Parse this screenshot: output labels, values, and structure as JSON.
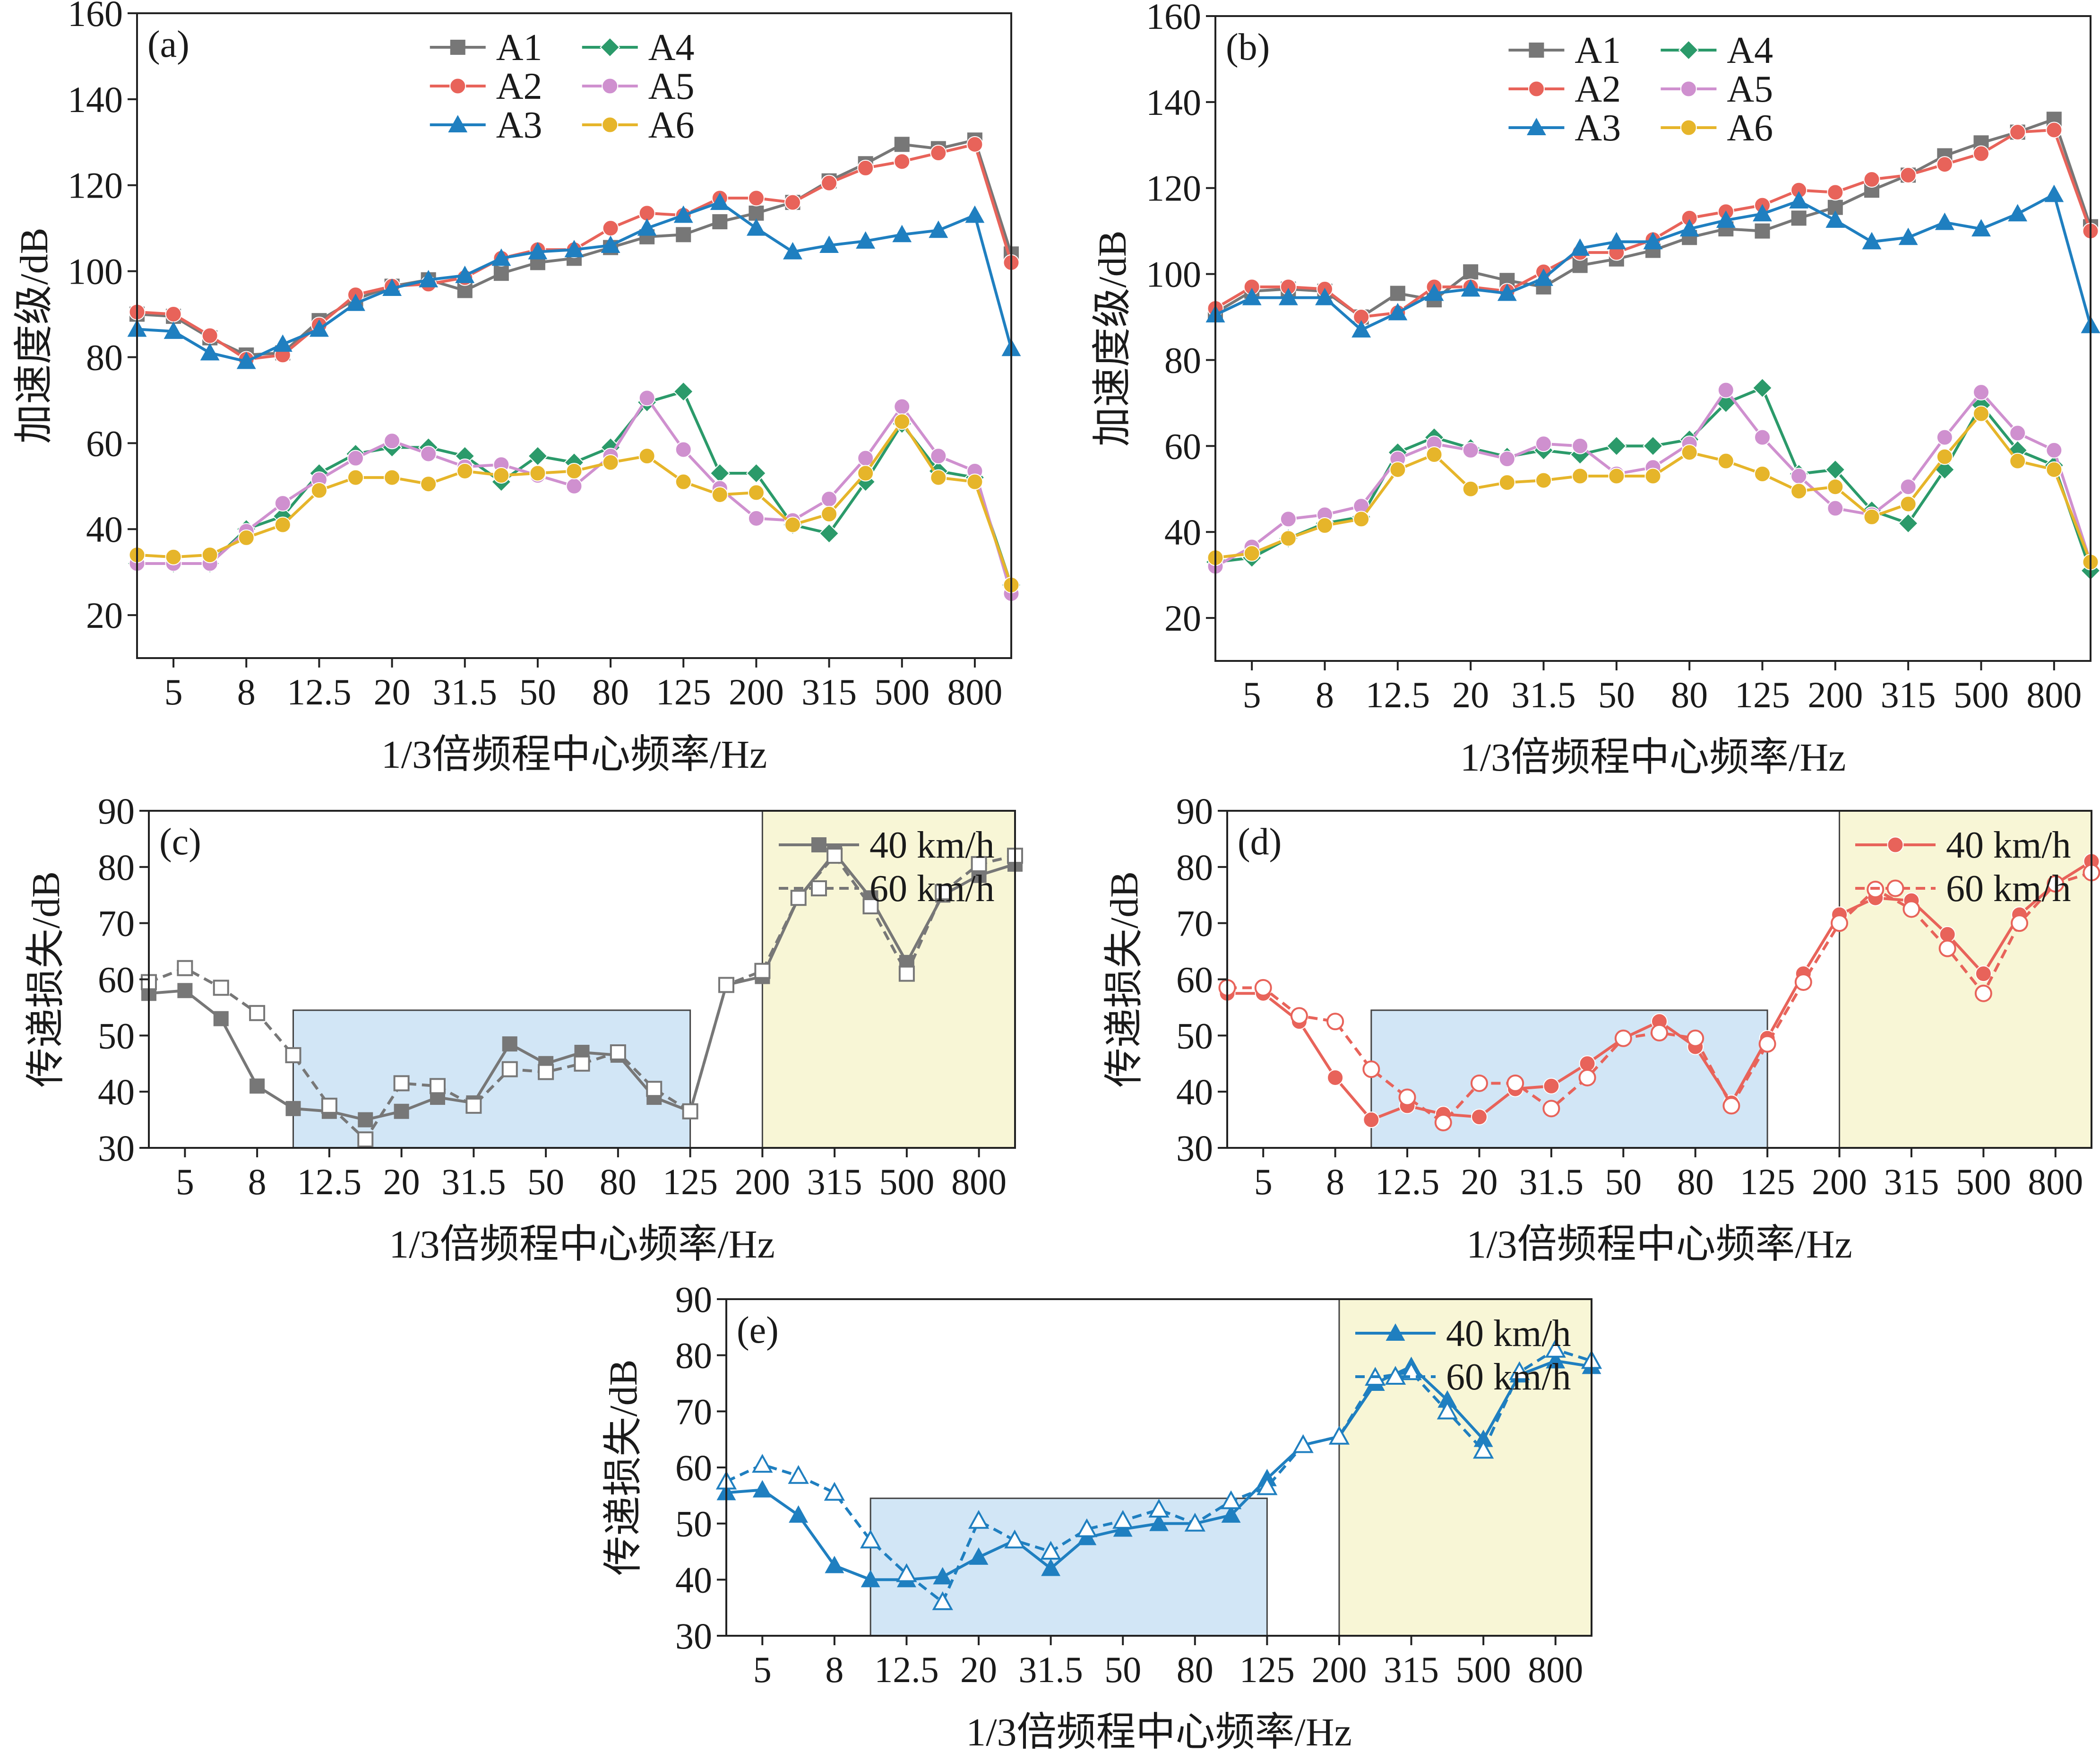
{
  "figure": {
    "xlabel": "1/3倍频程中心频率/Hz",
    "x_tick_labels": [
      "5",
      "8",
      "12.5",
      "20",
      "31.5",
      "50",
      "80",
      "125",
      "200",
      "315",
      "500",
      "800"
    ],
    "chart_data": [
      {
        "id": "a",
        "panel_label": "(a)",
        "type": "line",
        "title": "",
        "xlabel": "1/3倍频程中心频率/Hz",
        "ylabel": "加速度级/dB",
        "ylim": [
          10,
          160
        ],
        "yticks": [
          20,
          40,
          60,
          80,
          100,
          120,
          140,
          160
        ],
        "categories": [
          "4",
          "5",
          "6.3",
          "8",
          "10",
          "12.5",
          "16",
          "20",
          "25",
          "31.5",
          "40",
          "50",
          "63",
          "80",
          "100",
          "125",
          "160",
          "200",
          "250",
          "315",
          "400",
          "500",
          "630",
          "800",
          "1000"
        ],
        "series": [
          {
            "name": "A1",
            "color": "#777777",
            "marker": "square",
            "dashed": false,
            "values": [
              90,
              89.5,
              84.5,
              80.5,
              81,
              88.5,
              93.5,
              96.5,
              98,
              95.5,
              99.5,
              102,
              103,
              105.5,
              108,
              108.5,
              111.5,
              113.5,
              116,
              121,
              125,
              129.5,
              128.5,
              130.5,
              104
            ]
          },
          {
            "name": "A2",
            "color": "#e8635a",
            "marker": "circle",
            "dashed": false,
            "values": [
              90.5,
              90,
              85,
              79.5,
              80.5,
              87.5,
              94.5,
              96.5,
              97,
              98.5,
              103,
              105,
              105,
              110,
              113.5,
              113,
              117,
              117,
              116,
              120.5,
              124,
              125.5,
              127.5,
              129.5,
              102
            ]
          },
          {
            "name": "A3",
            "color": "#1f7fc0",
            "marker": "triangle",
            "dashed": false,
            "values": [
              86.5,
              86,
              81,
              79,
              83,
              86.5,
              92.5,
              96,
              98,
              99,
              103,
              104.5,
              105,
              106,
              110,
              113,
              116,
              110,
              104.5,
              106,
              107,
              108.5,
              109.5,
              113,
              82
            ]
          },
          {
            "name": "A4",
            "color": "#2b9a6a",
            "marker": "diamond",
            "dashed": false,
            "values": [
              32,
              32,
              32,
              40,
              43,
              53,
              57.5,
              59,
              59,
              57,
              51,
              57,
              55.5,
              59,
              69.5,
              72,
              53,
              53,
              41,
              39,
              51,
              64.5,
              53.5,
              52,
              27
            ]
          },
          {
            "name": "A5",
            "color": "#cf90cf",
            "marker": "circle",
            "dashed": false,
            "values": [
              32,
              32,
              32,
              39.5,
              46,
              51.5,
              56.5,
              60.5,
              57.5,
              54.5,
              55,
              52.5,
              50,
              57,
              70.5,
              58.5,
              49.5,
              42.5,
              42,
              47,
              56.5,
              68.5,
              57,
              53.5,
              25
            ]
          },
          {
            "name": "A6",
            "color": "#e6b52a",
            "marker": "circle",
            "dashed": false,
            "values": [
              34,
              33.5,
              34,
              38,
              41,
              49,
              52,
              52,
              50.5,
              53.5,
              52.5,
              53,
              53.5,
              55.5,
              57,
              51,
              48,
              48.5,
              41,
              43.5,
              53,
              65,
              52,
              51,
              27
            ]
          }
        ],
        "legend": {
          "position": "top-center",
          "columns": 2
        }
      },
      {
        "id": "b",
        "panel_label": "(b)",
        "type": "line",
        "title": "",
        "xlabel": "1/3倍频程中心频率/Hz",
        "ylabel": "加速度级/dB",
        "ylim": [
          10,
          160
        ],
        "yticks": [
          20,
          40,
          60,
          80,
          100,
          120,
          140,
          160
        ],
        "categories": [
          "4",
          "5",
          "6.3",
          "8",
          "10",
          "12.5",
          "16",
          "20",
          "25",
          "31.5",
          "40",
          "50",
          "63",
          "80",
          "100",
          "125",
          "160",
          "200",
          "250",
          "315",
          "400",
          "500",
          "630",
          "800",
          "1000"
        ],
        "series": [
          {
            "name": "A1",
            "color": "#777777",
            "marker": "square",
            "dashed": false,
            "values": [
              91,
              96,
              96.5,
              96,
              90,
              95.5,
              94,
              100.5,
              98.5,
              97,
              102,
              103.5,
              105.5,
              108.5,
              110.5,
              110,
              113,
              115.5,
              119.5,
              123,
              127.5,
              130.5,
              133,
              136,
              111
            ]
          },
          {
            "name": "A2",
            "color": "#e8635a",
            "marker": "circle",
            "dashed": false,
            "values": [
              92,
              97,
              97,
              96.5,
              90,
              91,
              97,
              97,
              96,
              100.5,
              105,
              105,
              108,
              113,
              114.5,
              116,
              119.5,
              119,
              122,
              123,
              125.5,
              128,
              133,
              133.5,
              110
            ]
          },
          {
            "name": "A3",
            "color": "#1f7fc0",
            "marker": "triangle",
            "dashed": false,
            "values": [
              90.5,
              94.5,
              94.5,
              94.5,
              87,
              91,
              95.5,
              96.5,
              95.5,
              99,
              106,
              107.5,
              107.5,
              110.5,
              112.5,
              114,
              117,
              112.5,
              107.5,
              108.5,
              112,
              110.5,
              114,
              118.5,
              88
            ]
          },
          {
            "name": "A4",
            "color": "#2b9a6a",
            "marker": "diamond",
            "dashed": false,
            "values": [
              33,
              34,
              38.5,
              42,
              43.5,
              58.5,
              62,
              59.5,
              57.5,
              59,
              58,
              60,
              60,
              61.5,
              70,
              73.5,
              53.5,
              54.5,
              45,
              42,
              54.5,
              69.5,
              59,
              55.5,
              31
            ]
          },
          {
            "name": "A5",
            "color": "#cf90cf",
            "marker": "circle",
            "dashed": false,
            "values": [
              32,
              36.5,
              43,
              44,
              46,
              57,
              60.5,
              59,
              57,
              60.5,
              60,
              53.5,
              55,
              60.5,
              73,
              62,
              53,
              45.5,
              44,
              50.5,
              62,
              72.5,
              63,
              59,
              33
            ]
          },
          {
            "name": "A6",
            "color": "#e6b52a",
            "marker": "circle",
            "dashed": false,
            "values": [
              34,
              35,
              38.5,
              41.5,
              43,
              54.5,
              58,
              50,
              51.5,
              52,
              53,
              53,
              53,
              58.5,
              56.5,
              53.5,
              49.5,
              50.5,
              43.5,
              46.5,
              57.5,
              67.5,
              56.5,
              54.5,
              33
            ]
          }
        ],
        "legend": {
          "position": "top-center",
          "columns": 2
        }
      },
      {
        "id": "c",
        "panel_label": "(c)",
        "type": "line",
        "title": "",
        "xlabel": "1/3倍频程中心频率/Hz",
        "ylabel": "传递损失/dB",
        "ylim": [
          30,
          90
        ],
        "yticks": [
          30,
          40,
          50,
          60,
          70,
          80,
          90
        ],
        "categories": [
          "4",
          "5",
          "6.3",
          "8",
          "10",
          "12.5",
          "16",
          "20",
          "25",
          "31.5",
          "40",
          "50",
          "63",
          "80",
          "100",
          "125",
          "160",
          "200",
          "250",
          "315",
          "400",
          "500",
          "630",
          "800",
          "1000"
        ],
        "series": [
          {
            "name": "40 km/h",
            "color": "#777777",
            "marker": "square",
            "dashed": false,
            "values": [
              57.5,
              58,
              53,
              41,
              37,
              36.5,
              35,
              36.5,
              39,
              38,
              48.5,
              45,
              47,
              46.5,
              39,
              36.5,
              59,
              60.5,
              74.5,
              82.5,
              74.5,
              63,
              75,
              78.5,
              80.5
            ]
          },
          {
            "name": "60 km/h",
            "color": "#777777",
            "marker": "square-open",
            "dashed": true,
            "values": [
              59.5,
              62,
              58.5,
              54,
              46.5,
              37.5,
              31.5,
              41.5,
              41,
              37.5,
              44,
              43.5,
              45,
              47,
              40.5,
              36.5,
              59,
              61.5,
              74.5,
              82,
              73,
              61,
              75.5,
              80.5,
              82
            ]
          }
        ],
        "highlight_bands": [
          {
            "from_index": 4,
            "to_index": 15,
            "y_max": 54.5,
            "color": "#d2e6f6"
          },
          {
            "from_index": 17,
            "to_index": 24,
            "y_max": 90,
            "color": "#f8f6d6"
          }
        ],
        "legend": {
          "position": "top-right",
          "columns": 1
        }
      },
      {
        "id": "d",
        "panel_label": "(d)",
        "type": "line",
        "title": "",
        "xlabel": "1/3倍频程中心频率/Hz",
        "ylabel": "传递损失/dB",
        "ylim": [
          30,
          90
        ],
        "yticks": [
          30,
          40,
          50,
          60,
          70,
          80,
          90
        ],
        "categories": [
          "4",
          "5",
          "6.3",
          "8",
          "10",
          "12.5",
          "16",
          "20",
          "25",
          "31.5",
          "40",
          "50",
          "63",
          "80",
          "100",
          "125",
          "160",
          "200",
          "250",
          "315",
          "400",
          "500",
          "630",
          "800",
          "1000"
        ],
        "series": [
          {
            "name": "40 km/h",
            "color": "#e8635a",
            "marker": "circle",
            "dashed": false,
            "values": [
              57.5,
              57.5,
              52.5,
              42.5,
              35,
              37.5,
              36,
              35.5,
              40.5,
              41,
              45,
              49.5,
              52.5,
              48,
              38,
              49.5,
              61,
              71.5,
              74.5,
              74,
              68,
              61,
              71.5,
              77,
              81
            ]
          },
          {
            "name": "60 km/h",
            "color": "#e8635a",
            "marker": "circle-open",
            "dashed": true,
            "values": [
              58.5,
              58.5,
              53.5,
              52.5,
              44,
              39,
              34.5,
              41.5,
              41.5,
              37,
              42.5,
              49.5,
              50.5,
              49.5,
              37.5,
              48.5,
              59.5,
              70,
              76,
              72.5,
              65.5,
              57.5,
              70,
              77,
              79
            ]
          }
        ],
        "highlight_bands": [
          {
            "from_index": 4,
            "to_index": 15,
            "y_max": 54.5,
            "color": "#d2e6f6"
          },
          {
            "from_index": 17,
            "to_index": 24,
            "y_max": 90,
            "color": "#f8f6d6"
          }
        ],
        "legend": {
          "position": "top-right",
          "columns": 1
        }
      },
      {
        "id": "e",
        "panel_label": "(e)",
        "type": "line",
        "title": "",
        "xlabel": "1/3倍频程中心频率/Hz",
        "ylabel": "传递损失/dB",
        "ylim": [
          30,
          90
        ],
        "yticks": [
          30,
          40,
          50,
          60,
          70,
          80,
          90
        ],
        "categories": [
          "4",
          "5",
          "6.3",
          "8",
          "10",
          "12.5",
          "16",
          "20",
          "25",
          "31.5",
          "40",
          "50",
          "63",
          "80",
          "100",
          "125",
          "160",
          "200",
          "250",
          "315",
          "400",
          "500",
          "630",
          "800",
          "1000"
        ],
        "series": [
          {
            "name": "40 km/h",
            "color": "#1f7fc0",
            "marker": "triangle",
            "dashed": false,
            "values": [
              55.5,
              56,
              51.5,
              42.5,
              40,
              40,
              40.5,
              44,
              47,
              42,
              47.5,
              49,
              50,
              50,
              51.5,
              58,
              64,
              65.5,
              75,
              78,
              72,
              65,
              76.5,
              79,
              78
            ]
          },
          {
            "name": "60 km/h",
            "color": "#1f7fc0",
            "marker": "triangle-open",
            "dashed": true,
            "values": [
              57.5,
              60.5,
              58.5,
              55.5,
              47,
              41,
              36,
              50.5,
              47,
              45,
              49,
              50.5,
              52.5,
              50,
              54,
              56.5,
              64,
              65.5,
              76,
              77,
              70,
              63,
              77,
              81,
              79
            ]
          }
        ],
        "highlight_bands": [
          {
            "from_index": 4,
            "to_index": 15,
            "y_max": 54.5,
            "color": "#d2e6f6"
          },
          {
            "from_index": 17,
            "to_index": 24,
            "y_max": 90,
            "color": "#f8f6d6"
          }
        ],
        "legend": {
          "position": "top-right",
          "columns": 1
        }
      }
    ]
  }
}
